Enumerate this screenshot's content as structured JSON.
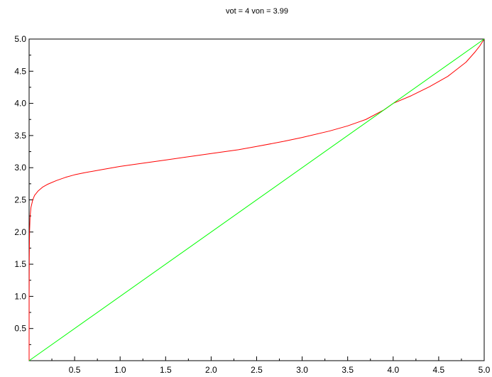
{
  "chart_data": {
    "type": "line",
    "title": "vot = 4 von = 3.99",
    "xlabel": "",
    "ylabel": "",
    "xlim": [
      0,
      5
    ],
    "ylim": [
      0,
      5
    ],
    "grid": false,
    "legend": "none",
    "x_ticks": [
      "0.5",
      "1.0",
      "1.5",
      "2.0",
      "2.5",
      "3.0",
      "3.5",
      "4.0",
      "4.5",
      "5.0"
    ],
    "y_ticks": [
      "0.5",
      "1.0",
      "1.5",
      "2.0",
      "2.5",
      "3.0",
      "3.5",
      "4.0",
      "4.5",
      "5.0"
    ],
    "series": [
      {
        "color": "#ff0000",
        "x": [
          0,
          0.0005,
          0.002,
          0.005,
          0.01,
          0.02,
          0.04,
          0.06,
          0.1,
          0.15,
          0.2,
          0.3,
          0.4,
          0.5,
          0.6,
          0.8,
          1.0,
          1.2,
          1.5,
          1.8,
          2.0,
          2.3,
          2.5,
          2.8,
          3.0,
          3.3,
          3.5,
          3.7,
          3.9,
          4.0,
          4.2,
          4.4,
          4.6,
          4.8,
          4.9,
          4.95,
          5.0
        ],
        "y": [
          0,
          1.0,
          1.6,
          2.0,
          2.22,
          2.38,
          2.5,
          2.57,
          2.64,
          2.7,
          2.74,
          2.8,
          2.85,
          2.89,
          2.92,
          2.97,
          3.02,
          3.06,
          3.12,
          3.18,
          3.22,
          3.28,
          3.33,
          3.41,
          3.47,
          3.57,
          3.65,
          3.75,
          3.9,
          4.0,
          4.12,
          4.26,
          4.42,
          4.64,
          4.8,
          4.89,
          5.0
        ]
      },
      {
        "color": "#00ff00",
        "x": [
          0,
          5
        ],
        "y": [
          0,
          5
        ]
      }
    ]
  }
}
